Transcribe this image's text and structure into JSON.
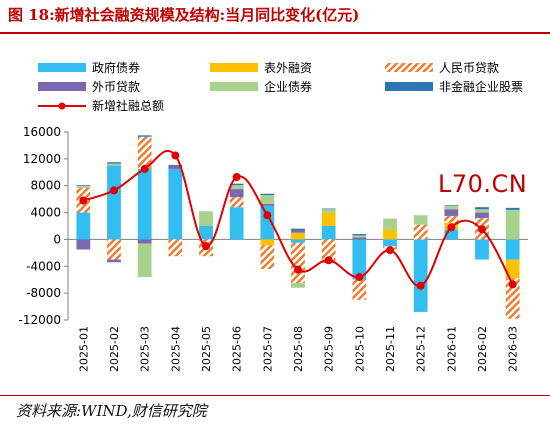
{
  "figure": {
    "title": "图 18:新增社会融资规模及结构:当月同比变化(亿元)",
    "source": "资料来源:WIND,财信研究院",
    "watermark": "L70.CN"
  },
  "chart_data": {
    "type": "bar",
    "stacked": true,
    "categories": [
      "2025-01",
      "2025-02",
      "2025-03",
      "2025-04",
      "2025-05",
      "2025-06",
      "2025-07",
      "2025-08",
      "2025-09",
      "2025-10",
      "2025-11",
      "2025-12",
      "2026-01",
      "2026-02",
      "2026-03"
    ],
    "ylim": [
      -12000,
      16000
    ],
    "yticks": [
      -12000,
      -8000,
      -4000,
      0,
      4000,
      8000,
      12000,
      16000
    ],
    "grid": false,
    "legend_position": "top",
    "series": [
      {
        "name": "政府债券",
        "color": "#33bdf0",
        "pattern": "solid",
        "values": [
          4000,
          11000,
          10500,
          10500,
          2000,
          4800,
          5000,
          -500,
          2000,
          -6000,
          -1000,
          -10800,
          1500,
          -3000,
          -3000
        ]
      },
      {
        "name": "表外融资",
        "color": "#ffc000",
        "pattern": "solid",
        "values": [
          0,
          0,
          0,
          0,
          0,
          0,
          -900,
          1000,
          2000,
          0,
          1500,
          0,
          1000,
          0,
          -2800
        ]
      },
      {
        "name": "人民币贷款",
        "color": "#ed7d31",
        "pattern": "hatch",
        "values": [
          3700,
          -3000,
          4800,
          -2500,
          -2500,
          1500,
          -3500,
          -6000,
          -3500,
          -3000,
          -500,
          2200,
          1000,
          3200,
          -6000
        ]
      },
      {
        "name": "外币贷款",
        "color": "#7b68b0",
        "pattern": "solid",
        "values": [
          -1500,
          -400,
          -600,
          500,
          0,
          1200,
          300,
          400,
          0,
          300,
          0,
          0,
          1000,
          800,
          0
        ]
      },
      {
        "name": "企业债券",
        "color": "#a9d18e",
        "pattern": "solid",
        "values": [
          300,
          300,
          -5000,
          0,
          2200,
          600,
          1300,
          -700,
          500,
          300,
          1600,
          1400,
          500,
          500,
          4400
        ]
      },
      {
        "name": "非金融企业股票",
        "color": "#2e75b6",
        "pattern": "solid",
        "values": [
          100,
          200,
          200,
          100,
          0,
          200,
          200,
          200,
          100,
          200,
          0,
          0,
          100,
          300,
          300
        ]
      }
    ],
    "line": {
      "name": "新增社融总额",
      "color": "#e00000",
      "values": [
        5800,
        7300,
        10500,
        12500,
        -1000,
        9300,
        3600,
        -4500,
        -3100,
        -5600,
        -1600,
        -6900,
        1800,
        1500,
        -6700
      ]
    }
  }
}
